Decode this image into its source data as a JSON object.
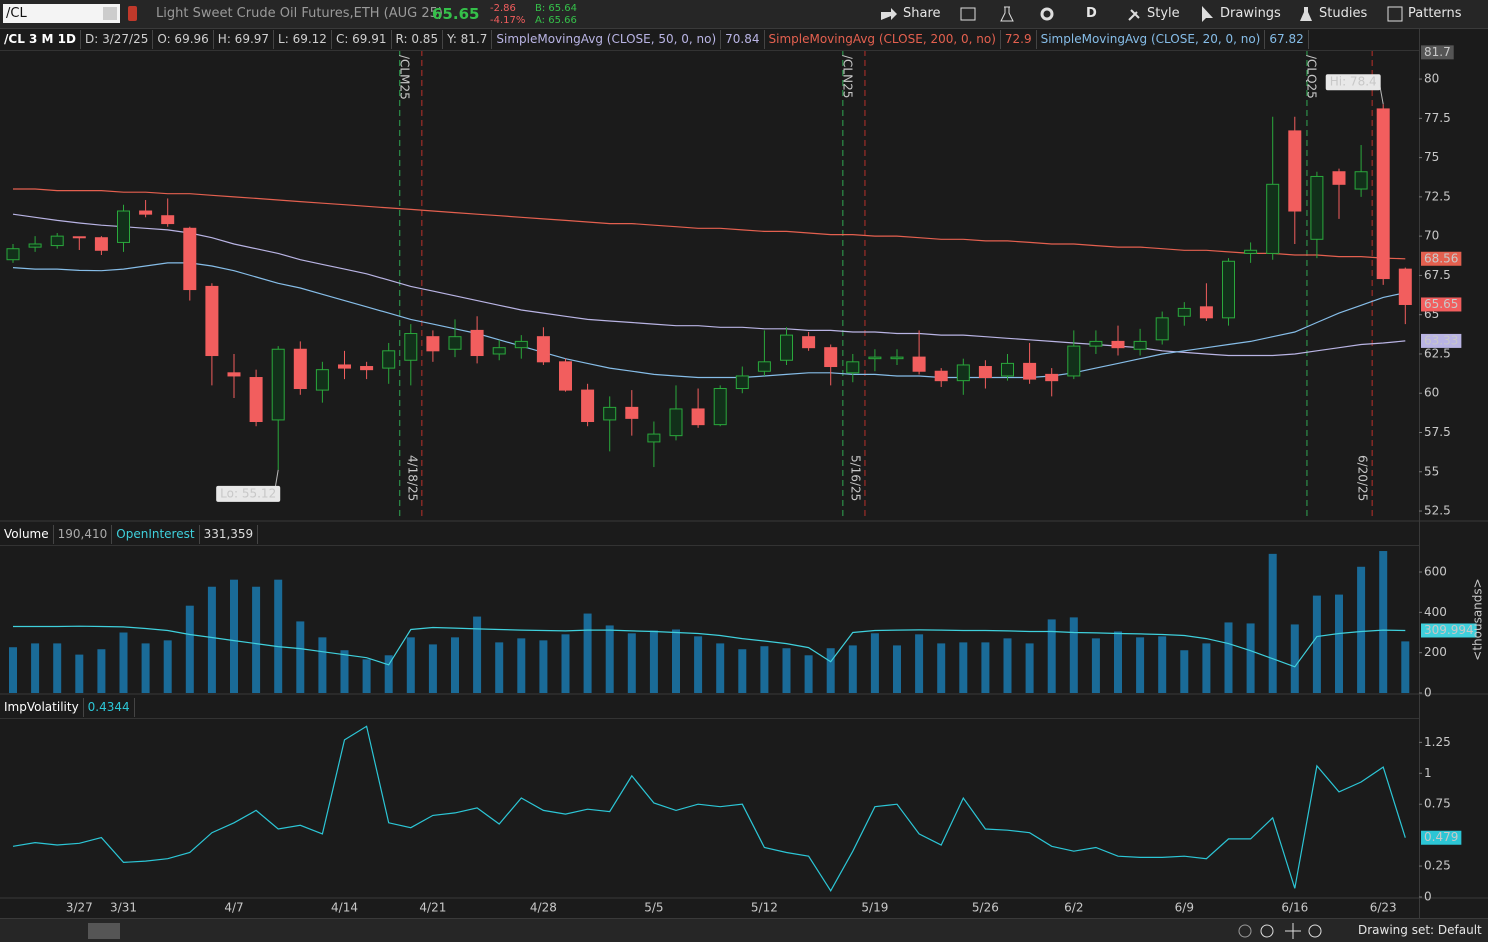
{
  "toolbar": {
    "symbol": "/CL",
    "description": "Light Sweet Crude Oil Futures,ETH (AUG 25)",
    "last": "65.65",
    "change": "-2.86",
    "change_pct": "-4.17%",
    "bid": "B: 65.64",
    "ask": "A: 65.66",
    "buttons": [
      "Share",
      "D",
      "Style",
      "Drawings",
      "Studies",
      "Patterns"
    ]
  },
  "legend": {
    "title": "/CL 3 M 1D",
    "fields": [
      "D: 3/27/25",
      "O: 69.96",
      "H: 69.97",
      "L: 69.12",
      "C: 69.91",
      "R: 0.85",
      "Y: 81.7"
    ]
  },
  "chart_data": [
    {
      "type": "candlestick",
      "categories": [
        null,
        null,
        null,
        "3/27",
        null,
        "3/31",
        null,
        null,
        null,
        null,
        "4/7",
        null,
        null,
        null,
        null,
        "4/14",
        null,
        null,
        null,
        "4/21",
        null,
        null,
        null,
        null,
        "4/28",
        null,
        null,
        null,
        null,
        "5/5",
        null,
        null,
        null,
        null,
        "5/12",
        null,
        null,
        null,
        null,
        "5/19",
        null,
        null,
        null,
        null,
        "5/26",
        null,
        null,
        null,
        "6/2",
        null,
        null,
        null,
        null,
        "6/9",
        null,
        null,
        null,
        null,
        "6/16",
        null,
        null,
        null,
        "6/23",
        null
      ],
      "open": [
        68.5,
        69.3,
        69.4,
        69.96,
        69.9,
        69.6,
        71.6,
        71.3,
        70.5,
        66.8,
        61.3,
        61.0,
        58.3,
        62.8,
        60.2,
        61.8,
        61.7,
        61.6,
        62.1,
        63.6,
        62.8,
        64.0,
        62.5,
        62.9,
        63.6,
        62.0,
        60.2,
        58.3,
        59.1,
        56.9,
        57.3,
        59.0,
        58.0,
        60.3,
        61.4,
        62.1,
        63.6,
        62.9,
        61.3,
        62.2,
        62.2,
        62.3,
        61.4,
        60.8,
        61.7,
        61.1,
        61.9,
        61.2,
        61.1,
        63.0,
        63.3,
        62.8,
        63.4,
        64.9,
        65.5,
        64.8,
        68.9,
        68.9,
        76.7,
        69.8,
        74.1,
        73.0,
        78.1,
        67.9
      ],
      "high": [
        69.5,
        70.0,
        70.2,
        69.97,
        70.0,
        72.0,
        72.3,
        72.4,
        70.6,
        67.0,
        62.5,
        61.5,
        63.0,
        63.3,
        62.0,
        62.7,
        62.0,
        63.2,
        64.4,
        64.0,
        64.7,
        64.9,
        63.4,
        63.7,
        64.2,
        62.2,
        60.6,
        59.8,
        60.2,
        58.2,
        60.5,
        60.3,
        60.5,
        61.7,
        64.0,
        64.2,
        63.9,
        63.1,
        62.5,
        62.8,
        62.8,
        64.0,
        61.6,
        62.2,
        62.1,
        62.5,
        63.2,
        61.6,
        64.0,
        64.0,
        64.3,
        64.1,
        65.2,
        65.8,
        67.0,
        68.6,
        69.6,
        77.6,
        77.6,
        74.1,
        74.3,
        75.8,
        78.4,
        68.0
      ],
      "low": [
        68.3,
        69.0,
        69.2,
        69.12,
        68.8,
        69.0,
        71.2,
        70.6,
        65.9,
        60.5,
        59.7,
        57.9,
        55.12,
        59.9,
        59.4,
        60.9,
        60.9,
        60.6,
        60.5,
        62.0,
        62.3,
        61.9,
        62.1,
        62.2,
        61.8,
        60.1,
        57.9,
        56.3,
        57.3,
        55.3,
        57.0,
        57.8,
        57.9,
        60.0,
        61.1,
        61.8,
        62.7,
        60.5,
        60.7,
        61.4,
        61.8,
        61.2,
        60.4,
        59.9,
        60.3,
        60.8,
        60.6,
        59.8,
        60.9,
        62.5,
        62.4,
        62.4,
        63.1,
        64.3,
        64.6,
        64.3,
        68.3,
        68.5,
        69.5,
        68.6,
        71.1,
        72.5,
        66.9,
        64.4
      ],
      "close": [
        69.2,
        69.5,
        70.0,
        69.91,
        69.1,
        71.6,
        71.4,
        70.8,
        66.6,
        62.4,
        61.1,
        58.2,
        62.8,
        60.3,
        61.5,
        61.6,
        61.5,
        62.7,
        63.8,
        62.7,
        63.6,
        62.4,
        62.9,
        63.3,
        62.0,
        60.2,
        58.2,
        59.1,
        58.4,
        57.4,
        59.0,
        58.0,
        60.3,
        61.1,
        62.0,
        63.7,
        62.9,
        61.7,
        62.0,
        62.3,
        62.3,
        61.4,
        60.8,
        61.8,
        61.0,
        61.9,
        60.9,
        60.8,
        63.0,
        63.3,
        62.9,
        63.3,
        64.8,
        65.4,
        64.8,
        68.4,
        69.1,
        73.3,
        71.6,
        73.8,
        73.3,
        74.1,
        67.3,
        65.65
      ],
      "up_color": "#2aa83c",
      "down_color": "#f25e5e",
      "close_marker": true,
      "series": [
        {
          "name": "SimpleMovingAvg (CLOSE, 50, 0, no)",
          "legend_value": "70.84",
          "color": "#b9b4e4",
          "last_marker": true,
          "values": [
            71.4,
            71.2,
            71.0,
            70.84,
            70.7,
            70.6,
            70.5,
            70.4,
            70.2,
            69.9,
            69.5,
            69.2,
            68.9,
            68.5,
            68.2,
            67.9,
            67.6,
            67.2,
            66.8,
            66.5,
            66.2,
            65.9,
            65.6,
            65.3,
            65.1,
            64.9,
            64.7,
            64.6,
            64.5,
            64.4,
            64.3,
            64.3,
            64.2,
            64.2,
            64.1,
            64.1,
            64.0,
            64.0,
            63.9,
            63.9,
            63.8,
            63.8,
            63.7,
            63.7,
            63.6,
            63.5,
            63.4,
            63.3,
            63.2,
            63.1,
            63.0,
            62.9,
            62.7,
            62.6,
            62.5,
            62.4,
            62.4,
            62.4,
            62.5,
            62.7,
            62.9,
            63.1,
            63.2,
            63.33
          ]
        },
        {
          "name": "SimpleMovingAvg (CLOSE, 200, 0, no)",
          "legend_value": "72.9",
          "color": "#e4604f",
          "last_marker": true,
          "values": [
            73.0,
            73.0,
            72.9,
            72.9,
            72.9,
            72.8,
            72.8,
            72.7,
            72.7,
            72.6,
            72.5,
            72.4,
            72.3,
            72.2,
            72.1,
            72.0,
            71.9,
            71.8,
            71.7,
            71.6,
            71.5,
            71.4,
            71.3,
            71.2,
            71.1,
            71.0,
            70.9,
            70.8,
            70.8,
            70.7,
            70.6,
            70.5,
            70.5,
            70.4,
            70.3,
            70.3,
            70.2,
            70.1,
            70.1,
            70.0,
            70.0,
            69.9,
            69.8,
            69.8,
            69.7,
            69.7,
            69.6,
            69.5,
            69.5,
            69.4,
            69.3,
            69.3,
            69.2,
            69.1,
            69.1,
            69.0,
            68.9,
            68.9,
            68.8,
            68.8,
            68.7,
            68.7,
            68.6,
            68.56
          ]
        },
        {
          "name": "SimpleMovingAvg (CLOSE, 20, 0, no)",
          "legend_value": "67.82",
          "color": "#86bde8",
          "last_marker": false,
          "values": [
            68.0,
            67.9,
            67.9,
            67.82,
            67.8,
            67.9,
            68.1,
            68.3,
            68.3,
            68.1,
            67.8,
            67.4,
            67.0,
            66.7,
            66.3,
            65.9,
            65.5,
            65.1,
            64.7,
            64.4,
            64.1,
            63.8,
            63.4,
            63.0,
            62.6,
            62.2,
            61.9,
            61.6,
            61.4,
            61.2,
            61.1,
            61.0,
            61.0,
            61.0,
            61.1,
            61.2,
            61.3,
            61.3,
            61.2,
            61.2,
            61.1,
            61.1,
            61.0,
            61.0,
            61.0,
            61.0,
            61.0,
            61.1,
            61.3,
            61.6,
            61.9,
            62.2,
            62.5,
            62.7,
            62.9,
            63.1,
            63.3,
            63.6,
            63.9,
            64.5,
            65.1,
            65.6,
            66.1,
            66.4
          ]
        }
      ],
      "ylim": [
        51.93,
        81.85
      ],
      "yticks": [
        52.5,
        55,
        57.5,
        60,
        62.5,
        65,
        67.5,
        70,
        72.5,
        75,
        77.5,
        80
      ],
      "cursor_value": 81.7,
      "hi_label": "Hi: 78.4",
      "lo_label": "Lo: 55.12",
      "events": [
        {
          "label": "/CLM25",
          "x": 17.5,
          "color": "#2fa852"
        },
        {
          "label": "4/18/25",
          "x": 18.5,
          "color": "#b8302a"
        },
        {
          "label": "/CLN25",
          "x": 37.55,
          "color": "#2fa852"
        },
        {
          "label": "5/16/25",
          "x": 38.55,
          "color": "#b8302a"
        },
        {
          "label": "/CLQ25",
          "x": 58.55,
          "color": "#2fa852"
        },
        {
          "label": "6/20/25",
          "x": 61.5,
          "color": "#b8302a"
        }
      ]
    },
    {
      "type": "bar",
      "title": "Volume",
      "title_value": "190,410",
      "color": "#1a6b98",
      "values": [
        227,
        246,
        246,
        190.41,
        217,
        300,
        246,
        261,
        433,
        527,
        562,
        527,
        562,
        355,
        276,
        212,
        167,
        187,
        276,
        241,
        276,
        379,
        251,
        271,
        261,
        291,
        394,
        335,
        296,
        310,
        315,
        281,
        246,
        217,
        232,
        222,
        187,
        222,
        236,
        296,
        236,
        291,
        246,
        251,
        251,
        271,
        246,
        365,
        375,
        271,
        305,
        276,
        281,
        212,
        246,
        350,
        345,
        690,
        340,
        483,
        488,
        626,
        704,
        256
      ],
      "series": [
        {
          "name": "OpenInterest",
          "legend_value": "331,359",
          "color": "#3fd0dc",
          "last_marker": true,
          "values": [
            330,
            330,
            330,
            331.359,
            330,
            328,
            320,
            310,
            290,
            275,
            260,
            245,
            230,
            220,
            205,
            190,
            175,
            140,
            315,
            325,
            322,
            318,
            315,
            312,
            310,
            308,
            312,
            312,
            308,
            305,
            300,
            295,
            285,
            270,
            258,
            245,
            225,
            155,
            300,
            310,
            312,
            313,
            312,
            310,
            310,
            308,
            305,
            305,
            300,
            298,
            295,
            293,
            290,
            285,
            270,
            245,
            210,
            170,
            130,
            280,
            295,
            305,
            312,
            309.994
          ]
        }
      ],
      "ylim": [
        0,
        729
      ],
      "yticks": [
        0,
        200,
        400,
        600
      ],
      "axis_label": "<thousands>"
    },
    {
      "type": "line",
      "series": [
        {
          "name": "ImpVolatility",
          "legend_value": "0.4344",
          "color": "#2cc6d6",
          "last_marker": true,
          "values": [
            0.41,
            0.44,
            0.42,
            0.4344,
            0.48,
            0.28,
            0.29,
            0.31,
            0.36,
            0.52,
            0.6,
            0.7,
            0.55,
            0.58,
            0.51,
            1.27,
            1.38,
            0.6,
            0.56,
            0.66,
            0.68,
            0.72,
            0.59,
            0.8,
            0.7,
            0.67,
            0.71,
            0.69,
            0.98,
            0.76,
            0.7,
            0.75,
            0.73,
            0.75,
            0.4,
            0.36,
            0.33,
            0.05,
            0.37,
            0.73,
            0.75,
            0.51,
            0.42,
            0.8,
            0.55,
            0.54,
            0.52,
            0.41,
            0.37,
            0.4,
            0.33,
            0.32,
            0.32,
            0.33,
            0.31,
            0.47,
            0.47,
            0.64,
            0.07,
            1.06,
            0.85,
            0.93,
            1.05,
            0.479
          ]
        }
      ],
      "ylim": [
        0,
        1.447
      ],
      "yticks": [
        0,
        0.25,
        0.75,
        1,
        1.25
      ]
    }
  ],
  "footer": {
    "drawing_set": "Drawing set: Default"
  }
}
